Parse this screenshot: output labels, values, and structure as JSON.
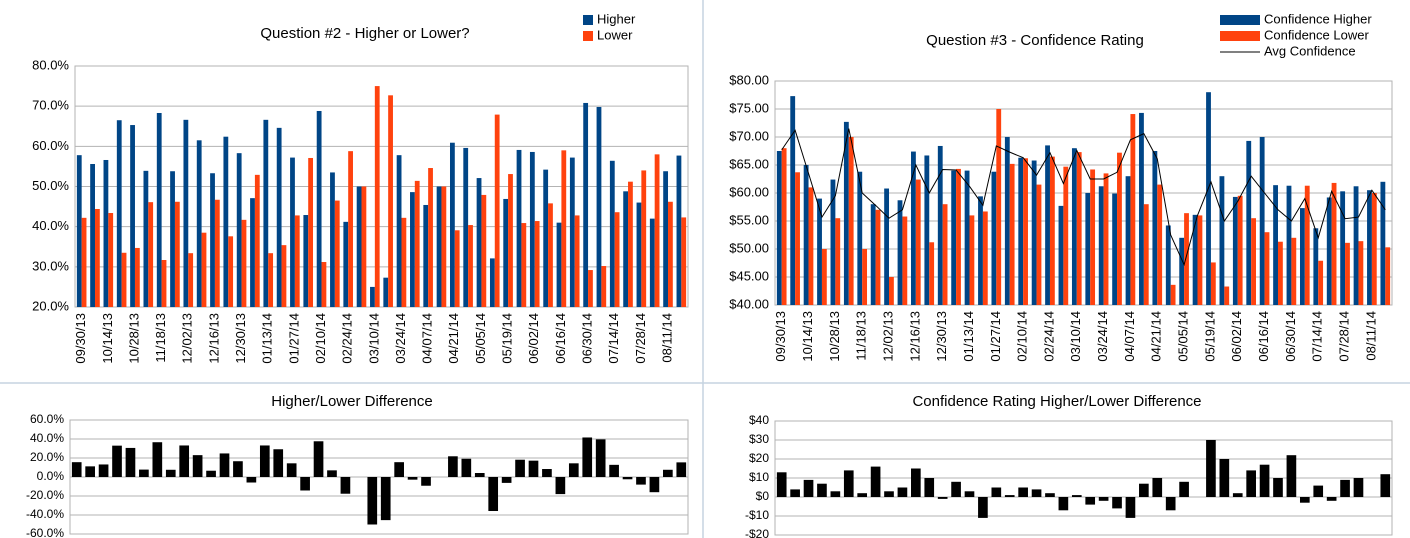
{
  "chart_data": [
    {
      "type": "bar",
      "title": "Question #2 - Higher or Lower?",
      "categories": [
        "09/30/13",
        null,
        "10/14/13",
        null,
        "10/28/13",
        null,
        "11/18/13",
        null,
        "12/02/13",
        null,
        "12/16/13",
        null,
        "12/30/13",
        null,
        "01/13/14",
        null,
        "01/27/14",
        null,
        "02/10/14",
        null,
        "02/24/14",
        null,
        "03/10/14",
        null,
        "03/24/14",
        null,
        "04/07/14",
        null,
        "04/21/14",
        null,
        "05/05/14",
        null,
        "05/19/14",
        null,
        "06/02/14",
        null,
        "06/16/14",
        null,
        "06/30/14",
        null,
        "07/14/14",
        null,
        "07/28/14",
        null,
        "08/11/14",
        null
      ],
      "series": [
        {
          "name": "Higher",
          "color": "#004586",
          "values": [
            57.8,
            55.6,
            56.6,
            66.5,
            65.3,
            53.9,
            68.3,
            53.8,
            66.6,
            61.5,
            53.3,
            62.4,
            58.3,
            47.1,
            66.6,
            64.6,
            57.2,
            42.9,
            68.8,
            53.5,
            41.2,
            50,
            25,
            27.3,
            57.8,
            48.6,
            45.4,
            50,
            60.9,
            59.6,
            52.1,
            32.1,
            46.9,
            59.1,
            58.6,
            54.2,
            41,
            57.2,
            70.8,
            69.8,
            56.4,
            48.8,
            46,
            42,
            53.8,
            57.7
          ]
        },
        {
          "name": "Lower",
          "color": "#ff420e",
          "values": [
            42.2,
            44.4,
            43.4,
            33.5,
            34.7,
            46.1,
            31.7,
            46.2,
            33.4,
            38.5,
            46.7,
            37.6,
            41.7,
            52.9,
            33.4,
            35.4,
            42.8,
            57.1,
            31.2,
            46.5,
            58.8,
            50,
            75,
            72.7,
            42.2,
            51.4,
            54.6,
            50,
            39.1,
            40.4,
            47.9,
            67.9,
            53.1,
            40.9,
            41.4,
            45.8,
            59,
            42.8,
            29.2,
            30.2,
            43.6,
            51.2,
            54,
            58,
            46.2,
            42.3
          ]
        }
      ],
      "ylim": [
        20,
        80
      ],
      "yticks": [
        {
          "value": 20,
          "label": "20.0%"
        },
        {
          "value": 30,
          "label": "30.0%"
        },
        {
          "value": 40,
          "label": "40.0%"
        },
        {
          "value": 50,
          "label": "50.0%"
        },
        {
          "value": 60,
          "label": "60.0%"
        },
        {
          "value": 70,
          "label": "70.0%"
        },
        {
          "value": 80,
          "label": "80.0%"
        }
      ],
      "grid": true,
      "legend": "top-right"
    },
    {
      "type": "bar",
      "title": "Question #3 - Confidence Rating",
      "categories": [
        "09/30/13",
        null,
        "10/14/13",
        null,
        "10/28/13",
        null,
        "11/18/13",
        null,
        "12/02/13",
        null,
        "12/16/13",
        null,
        "12/30/13",
        null,
        "01/13/14",
        null,
        "01/27/14",
        null,
        "02/10/14",
        null,
        "02/24/14",
        null,
        "03/10/14",
        null,
        "03/24/14",
        null,
        "04/07/14",
        null,
        "04/21/14",
        null,
        "05/05/14",
        null,
        "05/19/14",
        null,
        "06/02/14",
        null,
        "06/16/14",
        null,
        "06/30/14",
        null,
        "07/14/14",
        null,
        "07/28/14",
        null,
        "08/11/14",
        null
      ],
      "series": [
        {
          "name": "Confidence Higher",
          "color": "#004586",
          "type": "bar",
          "values": [
            67.5,
            77.3,
            65,
            59,
            62.4,
            72.7,
            63.8,
            58,
            60.8,
            58.7,
            67.4,
            66.7,
            68.4,
            64,
            64,
            59.4,
            63.8,
            70,
            66.3,
            65.8,
            68.5,
            57.7,
            68,
            60,
            61.2,
            59.9,
            63,
            74.3,
            67.5,
            54.2,
            52,
            56.1,
            78,
            63,
            59.3,
            69.3,
            70,
            61.4,
            61.3,
            57.3,
            53.7,
            59.2,
            60.3,
            61.2,
            60.5,
            62
          ]
        },
        {
          "name": "Confidence Lower",
          "color": "#ff420e",
          "type": "bar",
          "values": [
            68,
            63.7,
            61,
            50,
            55.5,
            70,
            50,
            57,
            45,
            55.8,
            62.4,
            51.2,
            58,
            64.3,
            56,
            56.7,
            75,
            65.2,
            66.2,
            61.5,
            66.5,
            64.7,
            67.3,
            64.2,
            63.5,
            67.2,
            74.1,
            58,
            61.5,
            43.6,
            56.4,
            56,
            47.6,
            43.3,
            59.5,
            55.5,
            53,
            51.3,
            52,
            61.3,
            47.9,
            61.8,
            51.1,
            51.4,
            60,
            50.3
          ]
        },
        {
          "name": "Avg Confidence",
          "color": "#000000",
          "type": "line",
          "values": [
            67.7,
            71.2,
            63.5,
            55.7,
            59.5,
            71.5,
            60,
            57.8,
            55.5,
            57,
            65,
            60,
            64.2,
            64.1,
            61.2,
            57.8,
            68.4,
            67.3,
            66.3,
            63.2,
            67.2,
            61.7,
            67.6,
            62.5,
            62.5,
            63.7,
            69.5,
            70.6,
            66.1,
            52.5,
            47.2,
            56,
            62,
            55,
            58.5,
            63,
            60,
            57,
            55,
            59,
            52,
            60.3,
            55.4,
            55.7,
            60.5,
            57
          ]
        }
      ],
      "ylim": [
        40,
        80
      ],
      "yticks": [
        {
          "value": 40,
          "label": "$40.00"
        },
        {
          "value": 45,
          "label": "$45.00"
        },
        {
          "value": 50,
          "label": "$50.00"
        },
        {
          "value": 55,
          "label": "$55.00"
        },
        {
          "value": 60,
          "label": "$60.00"
        },
        {
          "value": 65,
          "label": "$65.00"
        },
        {
          "value": 70,
          "label": "$70.00"
        },
        {
          "value": 75,
          "label": "$75.00"
        },
        {
          "value": 80,
          "label": "$80.00"
        }
      ],
      "grid": true,
      "legend": "top-right"
    },
    {
      "type": "bar",
      "title": "Higher/Lower Difference",
      "color": "#000000",
      "values": [
        15.6,
        11.2,
        13.2,
        33,
        30.6,
        7.8,
        36.6,
        7.6,
        33.2,
        23,
        6.6,
        24.8,
        16.6,
        -5.8,
        33.2,
        29.2,
        14.4,
        -14.2,
        37.6,
        7,
        -17.6,
        0,
        -50,
        -45.4,
        15.6,
        -2.8,
        -9.2,
        0,
        21.8,
        19.2,
        4.2,
        -35.8,
        -6.2,
        18.2,
        17.2,
        8.4,
        -18,
        14.4,
        41.6,
        39.6,
        12.8,
        -2.4,
        -8,
        -16,
        7.6,
        15.4
      ],
      "ylim": [
        -60,
        60
      ],
      "yticks": [
        {
          "value": -60,
          "label": "-60.0%"
        },
        {
          "value": -40,
          "label": "-40.0%"
        },
        {
          "value": -20,
          "label": "-20.0%"
        },
        {
          "value": 0,
          "label": "0.0%"
        },
        {
          "value": 20,
          "label": "20.0%"
        },
        {
          "value": 40,
          "label": "40.0%"
        },
        {
          "value": 60,
          "label": "60.0%"
        }
      ],
      "grid": true
    },
    {
      "type": "bar",
      "title": "Confidence Rating Higher/Lower Difference",
      "color": "#000000",
      "values": [
        13,
        4,
        9,
        7,
        3,
        14,
        2,
        16,
        3,
        5,
        15,
        10,
        -1,
        8,
        3,
        -11,
        5,
        1,
        5,
        4,
        2,
        -7,
        1,
        -4,
        -2,
        -6,
        -11,
        7,
        10,
        -7,
        8,
        0,
        30,
        20,
        2,
        14,
        17,
        10,
        22,
        -3,
        6,
        -2,
        9,
        10,
        0,
        12
      ],
      "ylim": [
        -20,
        40
      ],
      "yticks": [
        {
          "value": -20,
          "label": "-$20"
        },
        {
          "value": -10,
          "label": "-$10"
        },
        {
          "value": 0,
          "label": "$0"
        },
        {
          "value": 10,
          "label": "$10"
        },
        {
          "value": 20,
          "label": "$20"
        },
        {
          "value": 30,
          "label": "$30"
        },
        {
          "value": 40,
          "label": "$40"
        }
      ],
      "grid": true
    }
  ]
}
